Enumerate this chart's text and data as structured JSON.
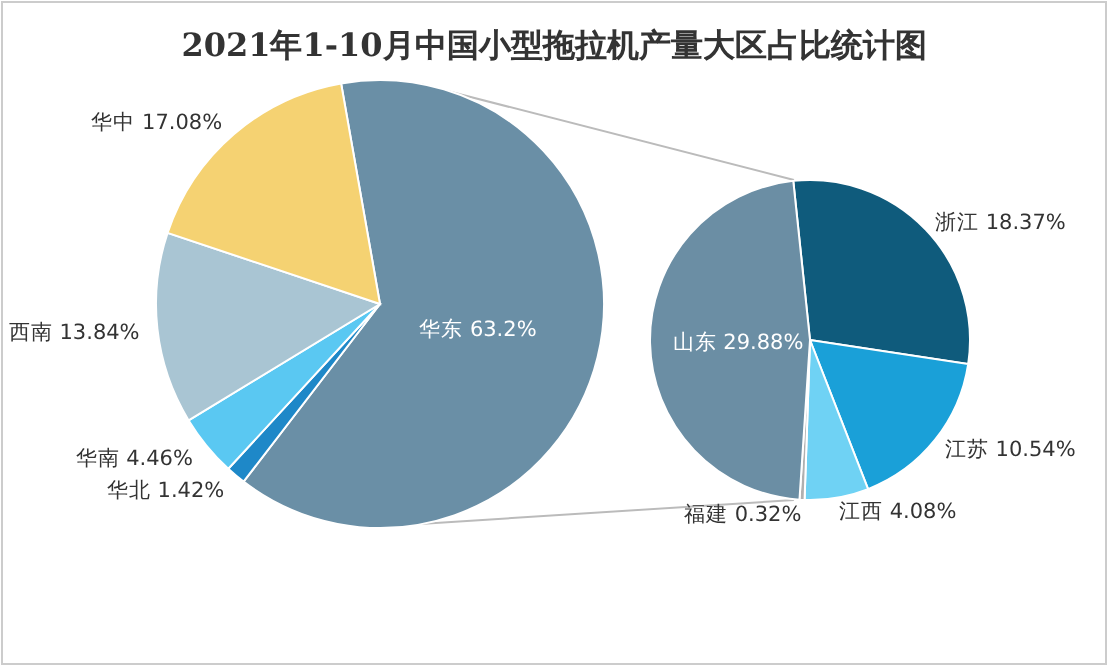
{
  "chart_data": [
    {
      "type": "pie",
      "title": "2021年1-10月中国小型拖拉机产量大区占比统计图",
      "categories": [
        "华东",
        "华北",
        "华南",
        "西南",
        "华中"
      ],
      "values": [
        63.2,
        1.42,
        4.46,
        13.84,
        17.08
      ],
      "colors": [
        "#6a8fa6",
        "#1e88c8",
        "#5ac8f2",
        "#a9c5d3",
        "#f5d272"
      ],
      "value_labels": [
        "63.2%",
        "1.42%",
        "4.46%",
        "13.84%",
        "17.08%"
      ]
    },
    {
      "type": "pie",
      "categories": [
        "浙江",
        "江苏",
        "江西",
        "福建",
        "山东"
      ],
      "values": [
        18.37,
        10.54,
        4.08,
        0.32,
        29.88
      ],
      "colors": [
        "#0f5b7c",
        "#1aa0d8",
        "#6fd2f4",
        "#b0b0b0",
        "#6b8ea4"
      ],
      "value_labels": [
        "18.37%",
        "10.54%",
        "4.08%",
        "0.32%",
        "29.88%"
      ]
    }
  ]
}
